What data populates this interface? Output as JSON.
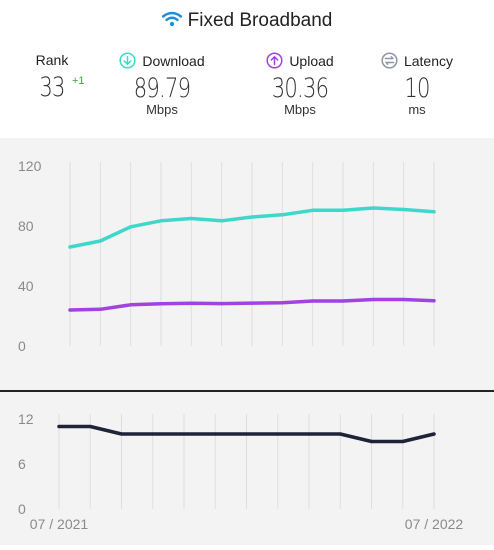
{
  "header": {
    "title": "Fixed Broadband",
    "icon": "wifi-icon"
  },
  "stats": {
    "rank": {
      "label": "Rank",
      "value": "33",
      "change": "+1"
    },
    "download": {
      "label": "Download",
      "value": "89.79",
      "unit": "Mbps",
      "icon": "download-arrow-icon",
      "color": "#3fd7c9"
    },
    "upload": {
      "label": "Upload",
      "value": "30.36",
      "unit": "Mbps",
      "icon": "upload-arrow-icon",
      "color": "#a043e0"
    },
    "latency": {
      "label": "Latency",
      "value": "10",
      "unit": "ms",
      "icon": "latency-icon",
      "color": "#8d96a8"
    }
  },
  "chart_data": [
    {
      "type": "line",
      "ylim": [
        0,
        120
      ],
      "yticks": [
        "120",
        "80",
        "40",
        "0"
      ],
      "grid": true,
      "series": [
        {
          "name": "Download",
          "color": "#3fd7c9",
          "values": [
            66,
            70,
            79.5,
            83.5,
            85,
            83.5,
            86,
            87.5,
            90.5,
            90.5,
            92,
            91,
            89.5
          ]
        },
        {
          "name": "Upload",
          "color": "#a043e0",
          "values": [
            24,
            24.5,
            27.5,
            28.2,
            28.5,
            28.3,
            28.6,
            28.8,
            30,
            30,
            31,
            31,
            30.2
          ]
        }
      ]
    },
    {
      "type": "line",
      "ylim": [
        0,
        12
      ],
      "yticks": [
        "12",
        "6",
        "0"
      ],
      "grid": true,
      "xticks": [
        "07 / 2021",
        "07 / 2022"
      ],
      "series": [
        {
          "name": "Latency",
          "color": "#1e2338",
          "values": [
            11,
            11,
            10,
            10,
            10,
            10,
            10,
            10,
            10,
            10,
            9,
            9,
            10
          ]
        }
      ]
    }
  ]
}
